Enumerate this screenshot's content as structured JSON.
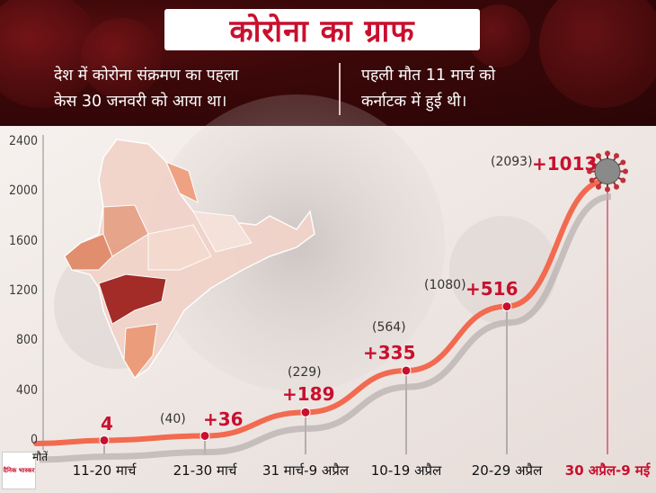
{
  "title": "कोरोना का ग्राफ",
  "note_left": [
    "देश में कोरोना संक्रमण का पहला",
    "केस 30 जनवरी को आया था।"
  ],
  "note_right": [
    "पहली मौत 11 मार्च को",
    "कर्नाटक में हुई थी।"
  ],
  "y_axis_label": "मौतें",
  "logo_text": "दैनिक भास्कर",
  "colors": {
    "accent": "#c8102e",
    "line": "#f26a4f",
    "banner": "#3c0809"
  },
  "chart_data": {
    "type": "line",
    "title": "कोरोना का ग्राफ",
    "xlabel": "",
    "ylabel": "मौतें",
    "categories": [
      "11-20 मार्च",
      "21-30 मार्च",
      "31 मार्च-9 अप्रैल",
      "10-19 अप्रैल",
      "20-29 अप्रैल",
      "30 अप्रैल-9 मई"
    ],
    "values": [
      4,
      40,
      229,
      564,
      1080,
      2093
    ],
    "increase_labels": [
      "4",
      "+36",
      "+189",
      "+335",
      "+516",
      "+1013"
    ],
    "cumulative_labels": [
      "",
      "(40)",
      "(229)",
      "(564)",
      "(1080)",
      "(2093)"
    ],
    "yticks": [
      0,
      400,
      800,
      1200,
      1600,
      2000,
      2400
    ],
    "ylim": [
      0,
      2400
    ],
    "grid": false
  }
}
